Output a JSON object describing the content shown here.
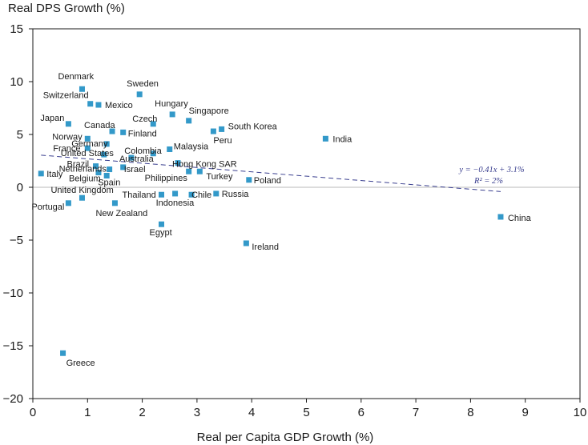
{
  "chart_data": {
    "type": "scatter",
    "title": "",
    "ylabel": "Real DPS Growth (%)",
    "xlabel": "Real per Capita GDP Growth (%)",
    "xlim": [
      0,
      10
    ],
    "ylim": [
      -20,
      15
    ],
    "xticks": [
      0,
      1,
      2,
      3,
      4,
      5,
      6,
      7,
      8,
      9,
      10
    ],
    "yticks": [
      15,
      10,
      5,
      0,
      -5,
      -10,
      -15,
      -20
    ],
    "ytick_labels": [
      "15",
      "10",
      "5",
      "0",
      "−5",
      "−10",
      "−15",
      "−20"
    ],
    "grid": false,
    "colors": {
      "point": "#3399c9",
      "trend": "#3a3f8f",
      "zero_line": "#c8c8c8",
      "axis": "#1a1a1a"
    },
    "trendline": {
      "slope": -0.41,
      "intercept": 3.1,
      "x_range": [
        0.15,
        8.55
      ],
      "equation_label": "y = −0.41x + 3.1%",
      "r2_label": "R² = 2%"
    },
    "points": [
      {
        "name": "Denmark",
        "x": 0.9,
        "y": 9.3
      },
      {
        "name": "Sweden",
        "x": 1.95,
        "y": 8.8
      },
      {
        "name": "Switzerland",
        "x": 1.05,
        "y": 7.9
      },
      {
        "name": "Mexico",
        "x": 1.2,
        "y": 7.8
      },
      {
        "name": "Hungary",
        "x": 2.55,
        "y": 6.9
      },
      {
        "name": "Singapore",
        "x": 2.85,
        "y": 6.3
      },
      {
        "name": "Japan",
        "x": 0.65,
        "y": 6.0
      },
      {
        "name": "Czech",
        "x": 2.2,
        "y": 6.0
      },
      {
        "name": "Canada",
        "x": 1.45,
        "y": 5.3
      },
      {
        "name": "Finland",
        "x": 1.65,
        "y": 5.2
      },
      {
        "name": "South Korea",
        "x": 3.45,
        "y": 5.5
      },
      {
        "name": "Peru",
        "x": 3.3,
        "y": 5.3
      },
      {
        "name": "India",
        "x": 5.35,
        "y": 4.6
      },
      {
        "name": "Norway",
        "x": 1.0,
        "y": 4.6
      },
      {
        "name": "Germany",
        "x": 1.35,
        "y": 4.1
      },
      {
        "name": "France",
        "x": 1.0,
        "y": 3.7
      },
      {
        "name": "Colombia",
        "x": 2.2,
        "y": 3.2
      },
      {
        "name": "Malaysia",
        "x": 2.5,
        "y": 3.6
      },
      {
        "name": "United States",
        "x": 1.3,
        "y": 3.1
      },
      {
        "name": "Australia",
        "x": 1.8,
        "y": 2.8
      },
      {
        "name": "Brazil",
        "x": 1.15,
        "y": 2.0
      },
      {
        "name": "Hong Kong SAR",
        "x": 2.65,
        "y": 2.3
      },
      {
        "name": "Netherlands",
        "x": 1.4,
        "y": 1.7
      },
      {
        "name": "Israel",
        "x": 1.65,
        "y": 1.9
      },
      {
        "name": "Turkey",
        "x": 3.05,
        "y": 1.5
      },
      {
        "name": "Italy",
        "x": 0.15,
        "y": 1.3
      },
      {
        "name": "Belgium",
        "x": 1.2,
        "y": 1.4
      },
      {
        "name": "Spain",
        "x": 1.35,
        "y": 1.1
      },
      {
        "name": "Philippines",
        "x": 2.85,
        "y": 1.5
      },
      {
        "name": "Poland",
        "x": 3.95,
        "y": 0.7
      },
      {
        "name": "United Kingdom",
        "x": 0.9,
        "y": -1.0
      },
      {
        "name": "Thailand",
        "x": 2.35,
        "y": -0.7
      },
      {
        "name": "Indonesia",
        "x": 2.6,
        "y": -0.6
      },
      {
        "name": "Chile",
        "x": 2.9,
        "y": -0.7
      },
      {
        "name": "Russia",
        "x": 3.35,
        "y": -0.6
      },
      {
        "name": "Portugal",
        "x": 0.65,
        "y": -1.5
      },
      {
        "name": "New Zealand",
        "x": 1.5,
        "y": -1.5
      },
      {
        "name": "China",
        "x": 8.55,
        "y": -2.8
      },
      {
        "name": "Egypt",
        "x": 2.35,
        "y": -3.5
      },
      {
        "name": "Ireland",
        "x": 3.9,
        "y": -5.3
      },
      {
        "name": "Greece",
        "x": 0.55,
        "y": -15.7
      }
    ]
  }
}
